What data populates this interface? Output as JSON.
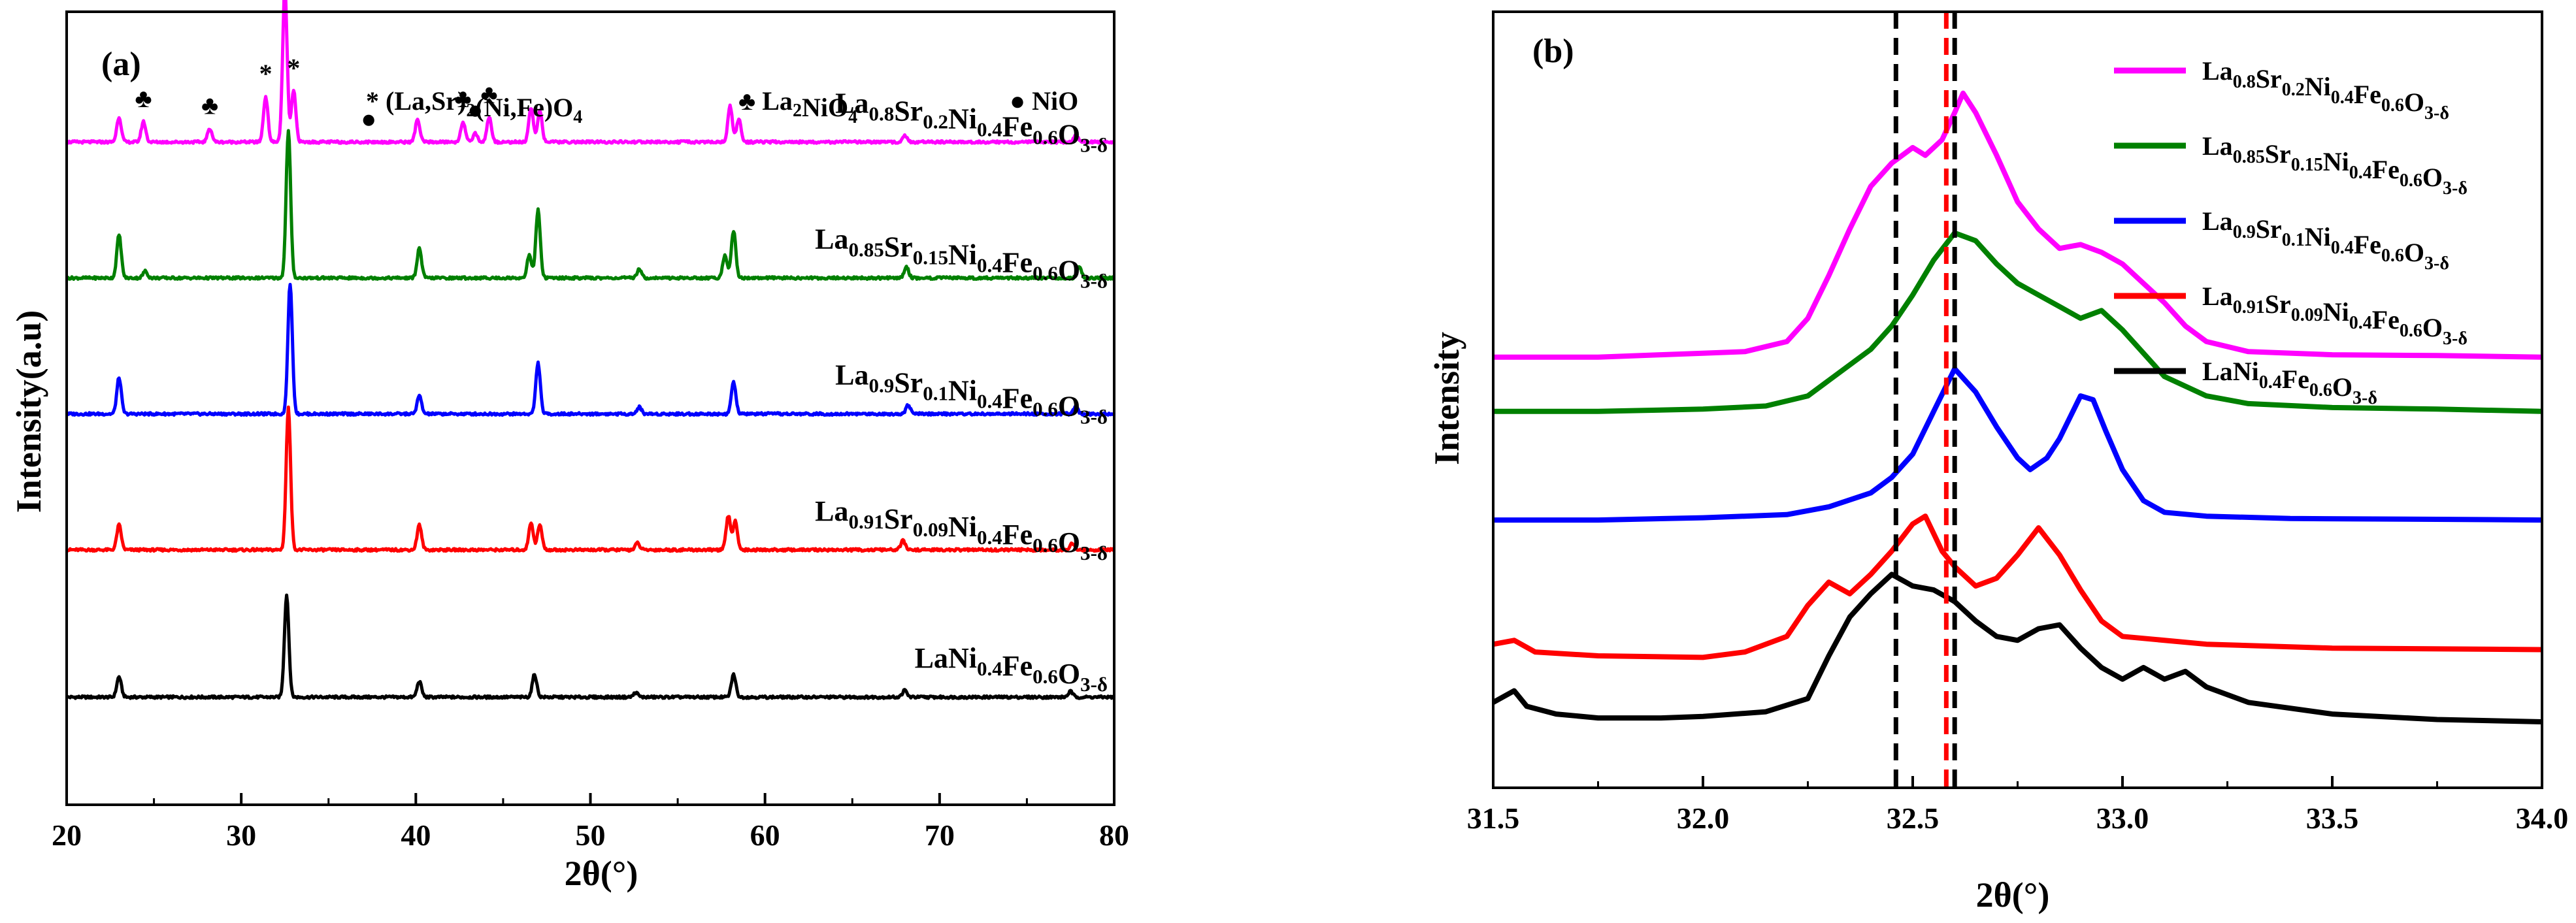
{
  "chart_data": [
    {
      "type": "line",
      "panel": "(a)",
      "xlabel": "2θ(°)",
      "ylabel": "Intensity(a.u)",
      "xlim": [
        20,
        80
      ],
      "xticks": [
        "20",
        "30",
        "40",
        "50",
        "60",
        "70",
        "80"
      ],
      "ylim": [
        0,
        7
      ],
      "yticks_shown": false,
      "phase_legend": [
        {
          "symbol": "*",
          "text": "(La,Sr)2(Ni,Fe)O4"
        },
        {
          "symbol": "♣",
          "text": "La2NiO4"
        },
        {
          "symbol": "●",
          "text": "NiO"
        }
      ],
      "peak_markers": [
        {
          "symbol": "♣",
          "x": 24.4
        },
        {
          "symbol": "♣",
          "x": 28.2
        },
        {
          "symbol": "*",
          "x": 31.4
        },
        {
          "symbol": "*",
          "x": 33.0
        },
        {
          "symbol": "●",
          "x": 37.3
        },
        {
          "symbol": "♣",
          "x": 42.7
        },
        {
          "symbol": "●",
          "x": 43.4
        },
        {
          "symbol": "♣",
          "x": 44.2
        }
      ],
      "series": [
        {
          "name": "LaNi0.4Fe0.6O3-δ",
          "label_parts": [
            [
              "La",
              ""
            ],
            [
              "Ni",
              "0.4"
            ],
            [
              "Fe",
              "0.6"
            ],
            [
              "O",
              "3-δ"
            ]
          ],
          "color": "#000000",
          "baseline": 0.95,
          "peaks": [
            [
              23.0,
              0.18
            ],
            [
              32.6,
              0.9
            ],
            [
              40.2,
              0.14
            ],
            [
              46.8,
              0.2
            ],
            [
              52.6,
              0.04
            ],
            [
              58.2,
              0.2
            ],
            [
              68.0,
              0.06
            ],
            [
              77.5,
              0.05
            ]
          ]
        },
        {
          "name": "La0.91Sr0.09Ni0.4Fe0.6O3-δ",
          "label_parts": [
            [
              "La",
              "0.91"
            ],
            [
              "Sr",
              "0.09"
            ],
            [
              "Ni",
              "0.4"
            ],
            [
              "Fe",
              "0.6"
            ],
            [
              "O",
              "3-δ"
            ]
          ],
          "color": "#ff0000",
          "baseline": 2.25,
          "peaks": [
            [
              23.0,
              0.22
            ],
            [
              32.7,
              1.25
            ],
            [
              40.2,
              0.22
            ],
            [
              46.6,
              0.24
            ],
            [
              47.1,
              0.22
            ],
            [
              52.7,
              0.06
            ],
            [
              57.9,
              0.3
            ],
            [
              58.3,
              0.25
            ],
            [
              67.9,
              0.08
            ],
            [
              77.6,
              0.06
            ]
          ]
        },
        {
          "name": "La0.9Sr0.1Ni0.4Fe0.6O3-δ",
          "label_parts": [
            [
              "La",
              "0.9"
            ],
            [
              "Sr",
              "0.1"
            ],
            [
              "Ni",
              "0.4"
            ],
            [
              "Fe",
              "0.6"
            ],
            [
              "O",
              "3-δ"
            ]
          ],
          "color": "#0000ff",
          "baseline": 3.45,
          "peaks": [
            [
              23.0,
              0.32
            ],
            [
              32.8,
              1.15
            ],
            [
              40.2,
              0.16
            ],
            [
              47.0,
              0.45
            ],
            [
              52.8,
              0.06
            ],
            [
              58.2,
              0.28
            ],
            [
              68.2,
              0.08
            ],
            [
              77.8,
              0.06
            ]
          ]
        },
        {
          "name": "La0.85Sr0.15Ni0.4Fe0.6O3-δ",
          "label_parts": [
            [
              "La",
              "0.85"
            ],
            [
              "Sr",
              "0.15"
            ],
            [
              "Ni",
              "0.4"
            ],
            [
              "Fe",
              "0.6"
            ],
            [
              "O",
              "3-δ"
            ]
          ],
          "color": "#008000",
          "baseline": 4.65,
          "peaks": [
            [
              23.0,
              0.38
            ],
            [
              24.5,
              0.06
            ],
            [
              32.7,
              1.3
            ],
            [
              40.2,
              0.26
            ],
            [
              46.5,
              0.2
            ],
            [
              47.0,
              0.6
            ],
            [
              52.8,
              0.08
            ],
            [
              58.2,
              0.42
            ],
            [
              57.7,
              0.2
            ],
            [
              68.1,
              0.1
            ],
            [
              78.0,
              0.1
            ]
          ]
        },
        {
          "name": "La0.8Sr0.2Ni0.4Fe0.6O3-δ",
          "label_parts": [
            [
              "La",
              "0.8"
            ],
            [
              "Sr",
              "0.2"
            ],
            [
              "Ni",
              "0.4"
            ],
            [
              "Fe",
              "0.6"
            ],
            [
              "O",
              "3-δ"
            ]
          ],
          "color": "#ff00ff",
          "baseline": 5.85,
          "peaks": [
            [
              23.0,
              0.22
            ],
            [
              24.4,
              0.18
            ],
            [
              28.2,
              0.12
            ],
            [
              31.4,
              0.4
            ],
            [
              32.5,
              1.35
            ],
            [
              33.0,
              0.45
            ],
            [
              40.1,
              0.2
            ],
            [
              42.7,
              0.18
            ],
            [
              43.4,
              0.08
            ],
            [
              44.2,
              0.22
            ],
            [
              46.6,
              0.3
            ],
            [
              47.1,
              0.28
            ],
            [
              58.0,
              0.32
            ],
            [
              58.5,
              0.2
            ],
            [
              68.0,
              0.06
            ],
            [
              77.8,
              0.06
            ]
          ]
        }
      ]
    },
    {
      "type": "line",
      "panel": "(b)",
      "xlabel": "2θ(°)",
      "ylabel": "Intensity",
      "xlim": [
        31.5,
        34.0
      ],
      "xticks": [
        "31.5",
        "32.0",
        "32.5",
        "33.0",
        "33.5",
        "34.0"
      ],
      "ylim": [
        0,
        10
      ],
      "yticks_shown": false,
      "reference_lines": [
        {
          "x": 32.46,
          "color": "#000000",
          "style": "dashed"
        },
        {
          "x": 32.58,
          "color": "#ff0000",
          "style": "dashed"
        },
        {
          "x": 32.6,
          "color": "#000000",
          "style": "dashed"
        }
      ],
      "legend_position": "top-right",
      "series": [
        {
          "name": "La0.8Sr0.2Ni0.4Fe0.6O3-δ",
          "label_parts": [
            [
              "La",
              "0.8"
            ],
            [
              "Sr",
              "0.2"
            ],
            [
              "Ni",
              "0.4"
            ],
            [
              "Fe",
              "0.6"
            ],
            [
              "O",
              "3-δ"
            ]
          ],
          "color": "#ff00ff",
          "x": [
            31.5,
            31.75,
            31.9,
            32.0,
            32.1,
            32.2,
            32.25,
            32.3,
            32.35,
            32.4,
            32.45,
            32.5,
            32.53,
            32.57,
            32.6,
            32.62,
            32.65,
            32.7,
            32.75,
            32.8,
            32.85,
            32.9,
            32.95,
            33.0,
            33.05,
            33.1,
            33.15,
            33.2,
            33.3,
            33.5,
            33.75,
            34.0
          ],
          "y": [
            5.55,
            5.55,
            5.58,
            5.6,
            5.62,
            5.75,
            6.05,
            6.6,
            7.2,
            7.75,
            8.05,
            8.25,
            8.15,
            8.35,
            8.7,
            8.95,
            8.7,
            8.15,
            7.55,
            7.2,
            6.95,
            7.0,
            6.9,
            6.75,
            6.5,
            6.25,
            5.95,
            5.75,
            5.62,
            5.58,
            5.57,
            5.55
          ]
        },
        {
          "name": "La0.85Sr0.15Ni0.4Fe0.6O3-δ",
          "label_parts": [
            [
              "La",
              "0.85"
            ],
            [
              "Sr",
              "0.15"
            ],
            [
              "Ni",
              "0.4"
            ],
            [
              "Fe",
              "0.6"
            ],
            [
              "O",
              "3-δ"
            ]
          ],
          "color": "#008000",
          "x": [
            31.5,
            31.75,
            32.0,
            32.15,
            32.25,
            32.3,
            32.4,
            32.45,
            32.5,
            32.55,
            32.6,
            32.65,
            32.7,
            32.75,
            32.8,
            32.85,
            32.9,
            32.95,
            33.0,
            33.05,
            33.1,
            33.2,
            33.3,
            33.5,
            33.75,
            34.0
          ],
          "y": [
            4.85,
            4.85,
            4.88,
            4.92,
            5.05,
            5.25,
            5.65,
            5.95,
            6.35,
            6.8,
            7.15,
            7.05,
            6.75,
            6.5,
            6.35,
            6.2,
            6.05,
            6.15,
            5.9,
            5.6,
            5.3,
            5.05,
            4.95,
            4.9,
            4.88,
            4.85
          ]
        },
        {
          "name": "La0.9Sr0.1Ni0.4Fe0.6O3-δ",
          "label_parts": [
            [
              "La",
              "0.9"
            ],
            [
              "Sr",
              "0.1"
            ],
            [
              "Ni",
              "0.4"
            ],
            [
              "Fe",
              "0.6"
            ],
            [
              "O",
              "3-δ"
            ]
          ],
          "color": "#0000ff",
          "x": [
            31.5,
            31.75,
            32.0,
            32.2,
            32.3,
            32.4,
            32.45,
            32.5,
            32.55,
            32.6,
            32.65,
            32.7,
            32.75,
            32.78,
            32.82,
            32.85,
            32.9,
            32.93,
            32.96,
            33.0,
            33.05,
            33.1,
            33.2,
            33.4,
            33.75,
            34.0
          ],
          "y": [
            3.45,
            3.45,
            3.48,
            3.52,
            3.62,
            3.8,
            4.0,
            4.3,
            4.85,
            5.4,
            5.1,
            4.65,
            4.25,
            4.1,
            4.25,
            4.5,
            5.05,
            5.0,
            4.6,
            4.1,
            3.7,
            3.55,
            3.5,
            3.47,
            3.46,
            3.45
          ]
        },
        {
          "name": "La0.91Sr0.09Ni0.4Fe0.6O3-δ",
          "label_parts": [
            [
              "La",
              "0.91"
            ],
            [
              "Sr",
              "0.09"
            ],
            [
              "Ni",
              "0.4"
            ],
            [
              "Fe",
              "0.6"
            ],
            [
              "O",
              "3-δ"
            ]
          ],
          "color": "#ff0000",
          "x": [
            31.5,
            31.55,
            31.6,
            31.75,
            32.0,
            32.1,
            32.2,
            32.25,
            32.3,
            32.35,
            32.4,
            32.45,
            32.5,
            32.53,
            32.57,
            32.6,
            32.65,
            32.7,
            32.75,
            32.8,
            32.85,
            32.9,
            32.95,
            33.0,
            33.2,
            33.5,
            34.0
          ],
          "y": [
            1.85,
            1.9,
            1.75,
            1.7,
            1.68,
            1.75,
            1.95,
            2.35,
            2.65,
            2.5,
            2.75,
            3.05,
            3.4,
            3.5,
            3.05,
            2.85,
            2.6,
            2.7,
            3.0,
            3.35,
            3.0,
            2.55,
            2.15,
            1.95,
            1.85,
            1.8,
            1.78
          ]
        },
        {
          "name": "LaNi0.4Fe0.6O3-δ",
          "label_parts": [
            [
              "La",
              ""
            ],
            [
              "Ni",
              "0.4"
            ],
            [
              "Fe",
              "0.6"
            ],
            [
              "O",
              "3-δ"
            ]
          ],
          "color": "#000000",
          "x": [
            31.5,
            31.55,
            31.58,
            31.65,
            31.75,
            31.9,
            32.0,
            32.15,
            32.25,
            32.3,
            32.35,
            32.4,
            32.45,
            32.5,
            32.55,
            32.6,
            32.65,
            32.7,
            32.75,
            32.8,
            32.85,
            32.9,
            32.95,
            33.0,
            33.05,
            33.1,
            33.15,
            33.2,
            33.3,
            33.5,
            33.75,
            34.0
          ],
          "y": [
            1.1,
            1.25,
            1.05,
            0.95,
            0.9,
            0.9,
            0.92,
            0.98,
            1.15,
            1.7,
            2.2,
            2.5,
            2.75,
            2.6,
            2.55,
            2.4,
            2.15,
            1.95,
            1.9,
            2.05,
            2.1,
            1.8,
            1.55,
            1.4,
            1.55,
            1.4,
            1.5,
            1.3,
            1.1,
            0.95,
            0.88,
            0.85
          ]
        }
      ]
    }
  ]
}
